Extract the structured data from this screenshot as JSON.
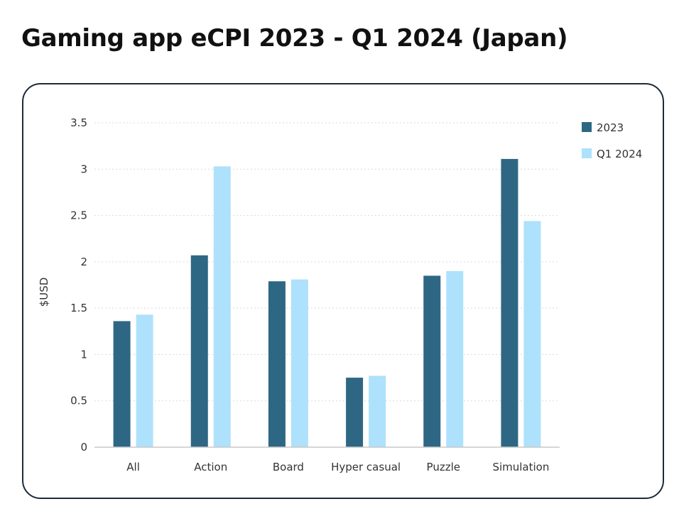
{
  "chart_data": {
    "type": "bar",
    "title": "Gaming app eCPI 2023 - Q1 2024 (Japan)",
    "xlabel": "",
    "ylabel": "$USD",
    "ylim": [
      0,
      3.5
    ],
    "yticks": [
      "0",
      "0.5",
      "1",
      "1.5",
      "2",
      "2.5",
      "3",
      "3.5"
    ],
    "yticks_values": [
      0,
      0.5,
      1,
      1.5,
      2,
      2.5,
      3,
      3.5
    ],
    "grid": true,
    "legend_position": "top-right",
    "categories": [
      "All",
      "Action",
      "Board",
      "Hyper casual",
      "Puzzle",
      "Simulation"
    ],
    "series": [
      {
        "name": "2023",
        "color": "#2e6784",
        "values": [
          1.36,
          2.07,
          1.79,
          0.75,
          1.85,
          3.11
        ]
      },
      {
        "name": "Q1 2024",
        "color": "#aee1fb",
        "values": [
          1.43,
          3.03,
          1.81,
          0.77,
          1.9,
          2.44
        ]
      }
    ]
  }
}
